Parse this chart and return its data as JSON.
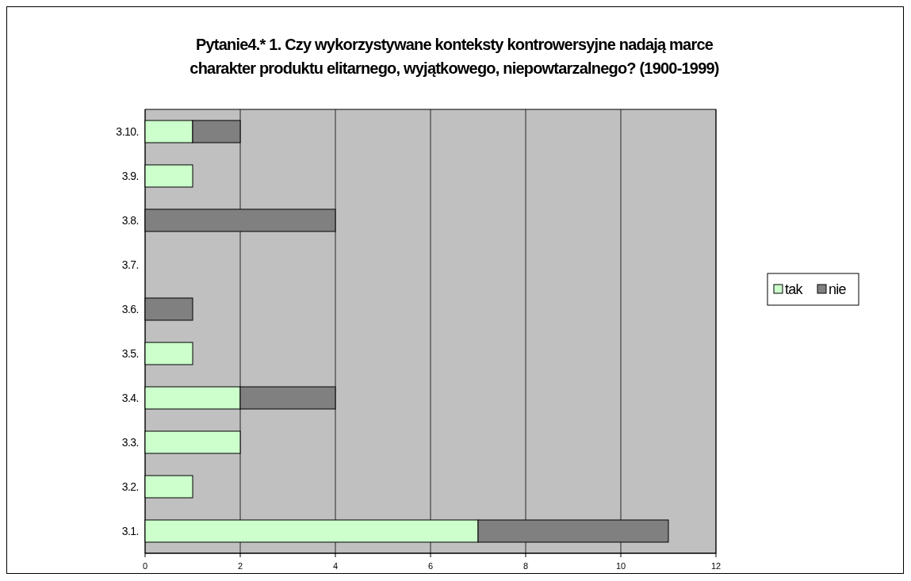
{
  "chart_data": {
    "type": "bar",
    "orientation": "horizontal",
    "stacked": true,
    "title": "Pytanie4.* 1. Czy wykorzystywane konteksty kontrowersyjne nadają marce charakter produktu elitarnego, wyjątkowego, niepowtarzalnego? (1900-1999)",
    "categories": [
      "3.10.",
      "3.9.",
      "3.8.",
      "3.7.",
      "3.6.",
      "3.5.",
      "3.4.",
      "3.3.",
      "3.2.",
      "3.1."
    ],
    "series": [
      {
        "name": "tak",
        "color": "#ccffcc",
        "values": [
          1,
          1,
          0,
          0,
          0,
          1,
          2,
          2,
          1,
          7
        ]
      },
      {
        "name": "nie",
        "color": "#808080",
        "values": [
          1,
          0,
          4,
          0,
          1,
          0,
          2,
          0,
          0,
          4
        ]
      }
    ],
    "xlim": [
      0,
      12
    ],
    "xticks": [
      0,
      2,
      4,
      6,
      8,
      10,
      12
    ],
    "grid": "x",
    "legend": "right"
  }
}
